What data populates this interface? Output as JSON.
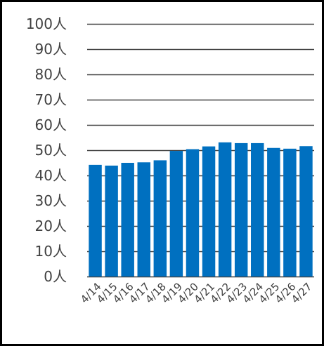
{
  "chart_data": {
    "type": "bar",
    "title": "",
    "xlabel": "",
    "ylabel": "",
    "categories": [
      "4/14",
      "4/15",
      "4/16",
      "4/17",
      "4/18",
      "4/19",
      "4/20",
      "4/21",
      "4/22",
      "4/23",
      "4/24",
      "4/25",
      "4/26",
      "4/27"
    ],
    "values": [
      44.2,
      43.9,
      45.0,
      45.2,
      46.0,
      49.7,
      50.4,
      51.5,
      53.1,
      52.8,
      52.8,
      50.9,
      50.6,
      51.6
    ],
    "ylim": [
      0,
      100
    ],
    "y_ticks": [
      0,
      10,
      20,
      30,
      40,
      50,
      60,
      70,
      80,
      90,
      100
    ],
    "y_tick_labels": [
      "0人",
      "10人",
      "20人",
      "30人",
      "40人",
      "50人",
      "60人",
      "70人",
      "80人",
      "90人",
      "100人"
    ],
    "grid": true,
    "legend": "none",
    "colors": {
      "bar": "#0070C0",
      "grid": "#404040",
      "frame": "#000000",
      "text": "#404040"
    }
  }
}
